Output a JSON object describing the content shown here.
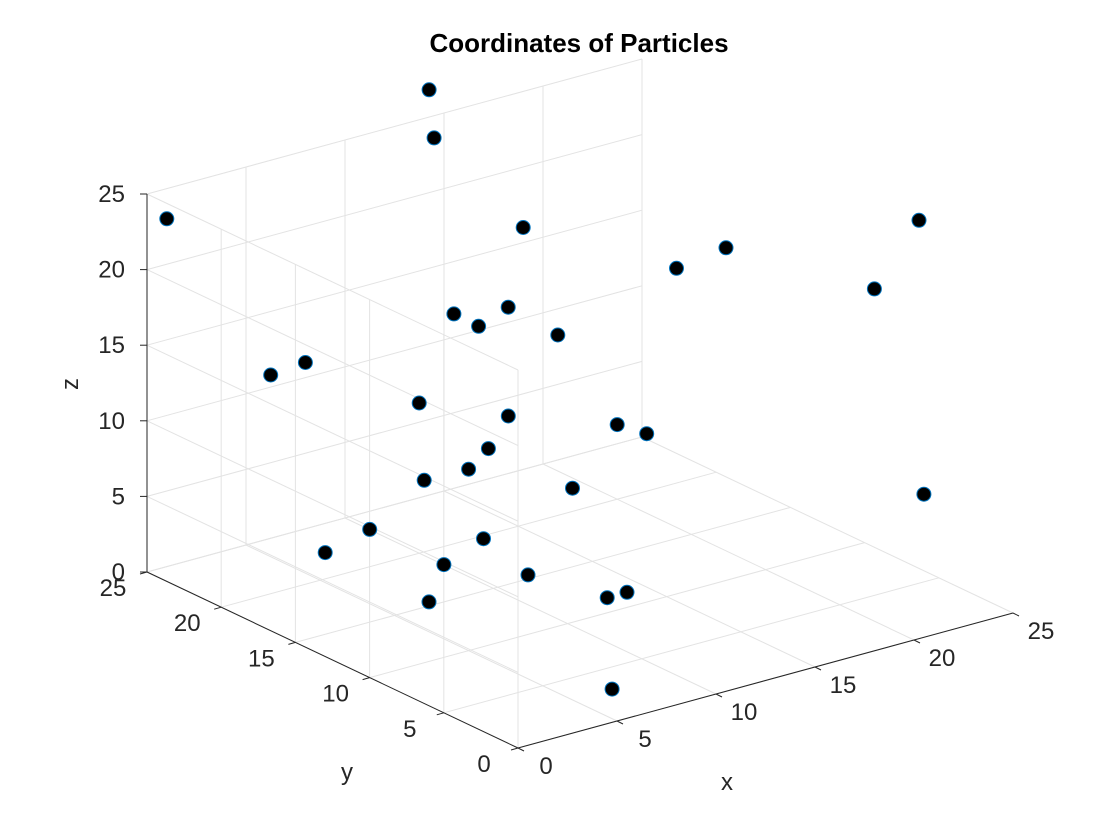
{
  "chart_data": {
    "type": "scatter",
    "projection": "3d",
    "title": "Coordinates of Particles",
    "xlabel": "x",
    "ylabel": "y",
    "zlabel": "z",
    "xlim": [
      0,
      25
    ],
    "ylim": [
      0,
      25
    ],
    "zlim": [
      0,
      25
    ],
    "xticks": [
      "0",
      "5",
      "10",
      "15",
      "20",
      "25"
    ],
    "yticks": [
      "0",
      "5",
      "10",
      "15",
      "20",
      "25"
    ],
    "zticks": [
      "0",
      "5",
      "10",
      "15",
      "20",
      "25"
    ],
    "grid": true,
    "colors": {
      "marker_fill": "#000000",
      "marker_edge": "#0072bd",
      "grid": "#e3e3e3",
      "axis": "#262626"
    },
    "points": [
      {
        "x": 1,
        "y": 25,
        "z": 23
      },
      {
        "x": 4,
        "y": 22,
        "z": 13
      },
      {
        "x": 11,
        "y": 21,
        "z": 4
      },
      {
        "x": 8,
        "y": 25,
        "z": 11
      },
      {
        "x": 13,
        "y": 24,
        "z": 7
      },
      {
        "x": 14,
        "y": 23,
        "z": 13
      },
      {
        "x": 16,
        "y": 24,
        "z": 11
      },
      {
        "x": 20,
        "y": 24,
        "z": 9
      },
      {
        "x": 19,
        "y": 25,
        "z": 16
      },
      {
        "x": 16,
        "y": 22,
        "z": 6
      },
      {
        "x": 23,
        "y": 24,
        "z": 2
      },
      {
        "x": 12,
        "y": 22,
        "z": 29
      },
      {
        "x": 13,
        "y": 23,
        "z": 25
      },
      {
        "x": 14,
        "y": 8,
        "z": 23
      },
      {
        "x": 5,
        "y": 3,
        "z": 14
      },
      {
        "x": 8,
        "y": 2,
        "z": 17
      },
      {
        "x": 7,
        "y": 10,
        "z": 22
      },
      {
        "x": 18,
        "y": 10,
        "z": 22
      },
      {
        "x": 21,
        "y": 4,
        "z": 21
      },
      {
        "x": 24,
        "y": 5,
        "z": 24
      },
      {
        "x": 22,
        "y": 2,
        "z": 8
      },
      {
        "x": 5,
        "y": 10,
        "z": 12
      },
      {
        "x": 6,
        "y": 10,
        "z": 13
      },
      {
        "x": 11,
        "y": 14,
        "z": 1
      },
      {
        "x": 12,
        "y": 10,
        "z": 1
      },
      {
        "x": 7,
        "y": 3,
        "z": 0
      },
      {
        "x": 6,
        "y": 14,
        "z": 1
      },
      {
        "x": 13,
        "y": 10,
        "z": 1
      },
      {
        "x": 11,
        "y": 17,
        "z": 2
      },
      {
        "x": 9,
        "y": 17,
        "z": 1
      },
      {
        "x": 6,
        "y": 21,
        "z": 1
      },
      {
        "x": 9,
        "y": 22,
        "z": 1
      }
    ]
  }
}
